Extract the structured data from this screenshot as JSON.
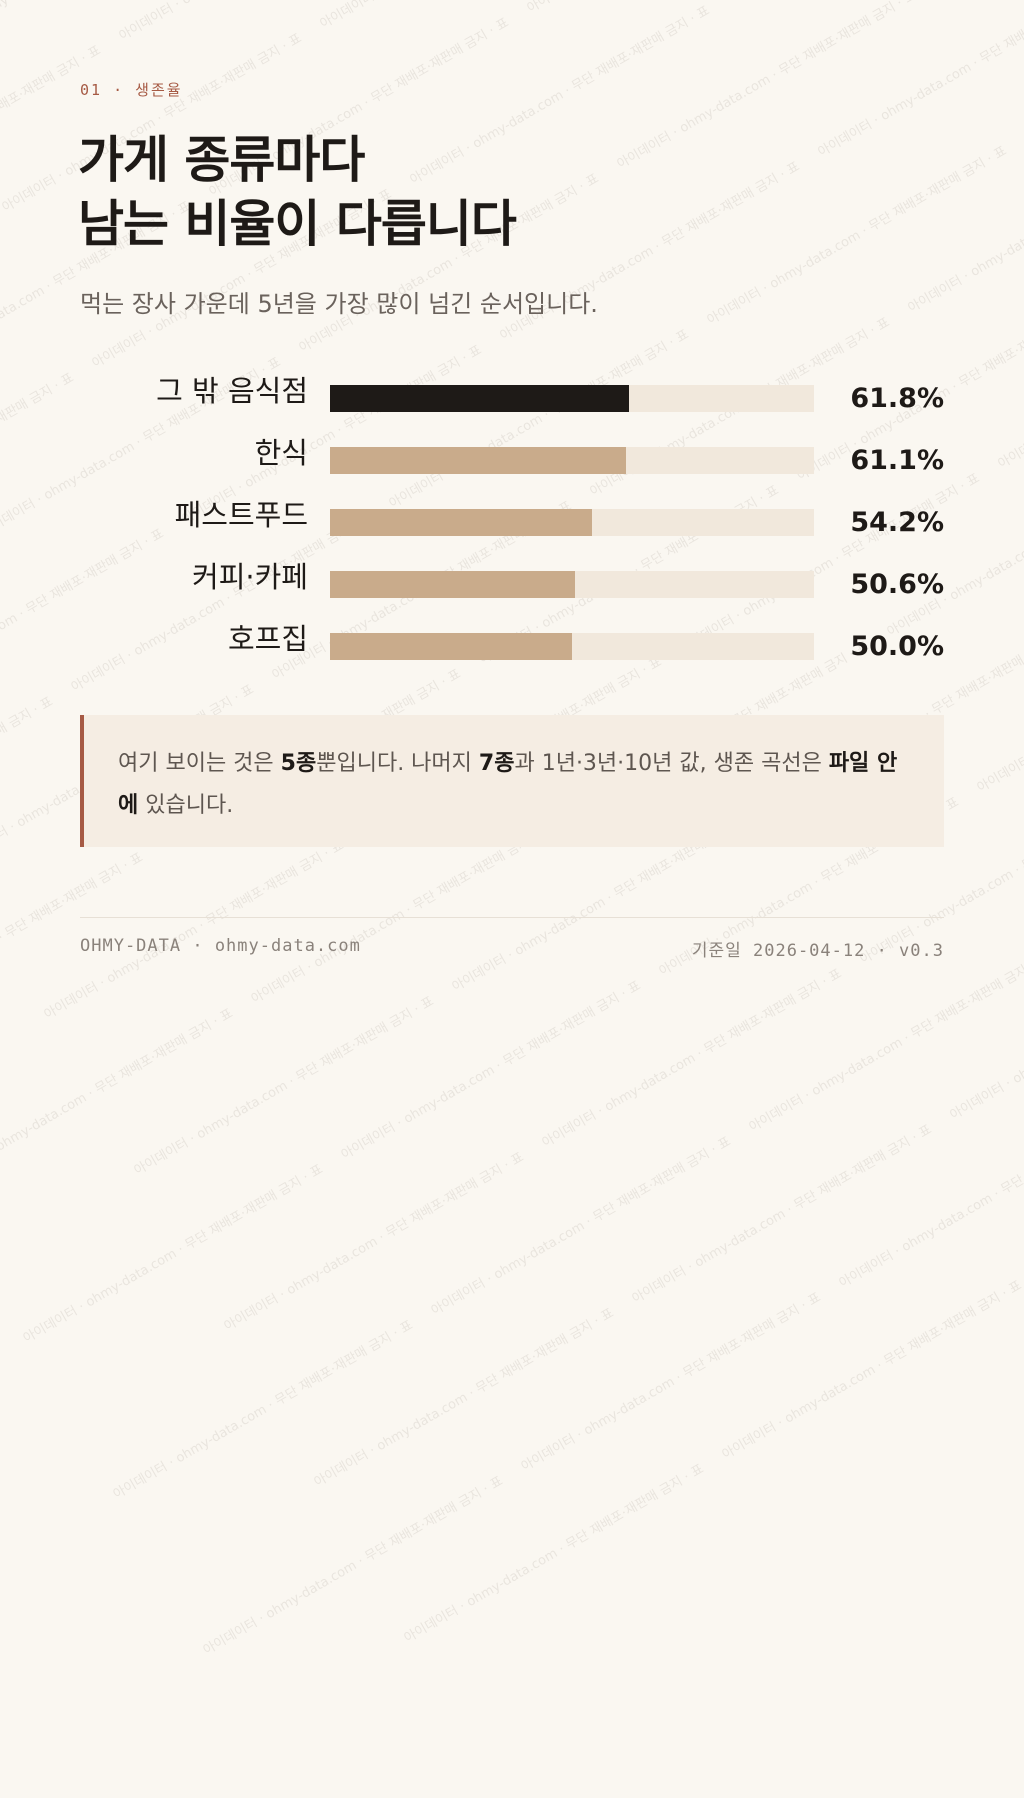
{
  "eyebrow": "01 · 생존율",
  "title": {
    "line1": "가게 종류마다",
    "line2": "남는 비율이 다릅니다"
  },
  "subtitle": "먹는 장사 가운데 5년을 가장 많이 넘긴 순서입니다.",
  "chart_data": {
    "type": "bar",
    "orientation": "horizontal",
    "categories": [
      "그 밖 음식점",
      "한식",
      "패스트푸드",
      "커피·카페",
      "호프집"
    ],
    "values": [
      61.8,
      61.1,
      54.2,
      50.6,
      50.0
    ],
    "value_labels": [
      "61.8%",
      "61.1%",
      "54.2%",
      "50.6%",
      "50.0%"
    ],
    "xlim": [
      0,
      100
    ],
    "highlight_index": 0,
    "colors": {
      "highlight": "#1e1a17",
      "bar": "#c9ab8b",
      "track": "#f1e8dc"
    }
  },
  "note": {
    "p1": "여기 보이는 것은 ",
    "b1": "5종",
    "p2": "뿐입니다. 나머지 ",
    "b2": "7종",
    "p3": "과 1년·3년·10년 값, 생존 곡선은 ",
    "b3": "파일 안에",
    "p4": " 있습니다."
  },
  "footer": {
    "brand": "OHMY-DATA · ohmy-data.com",
    "date_label": "기준일",
    "date_value": "2026-04-12 · v0.3"
  },
  "watermark_text": "아이데이터 · ohmy-data.com · 무단 재배포·재판매 금지 · 표",
  "colors": {
    "accent": "#a65a44",
    "background": "#faf7f1",
    "note_bg": "#f5ede3"
  }
}
